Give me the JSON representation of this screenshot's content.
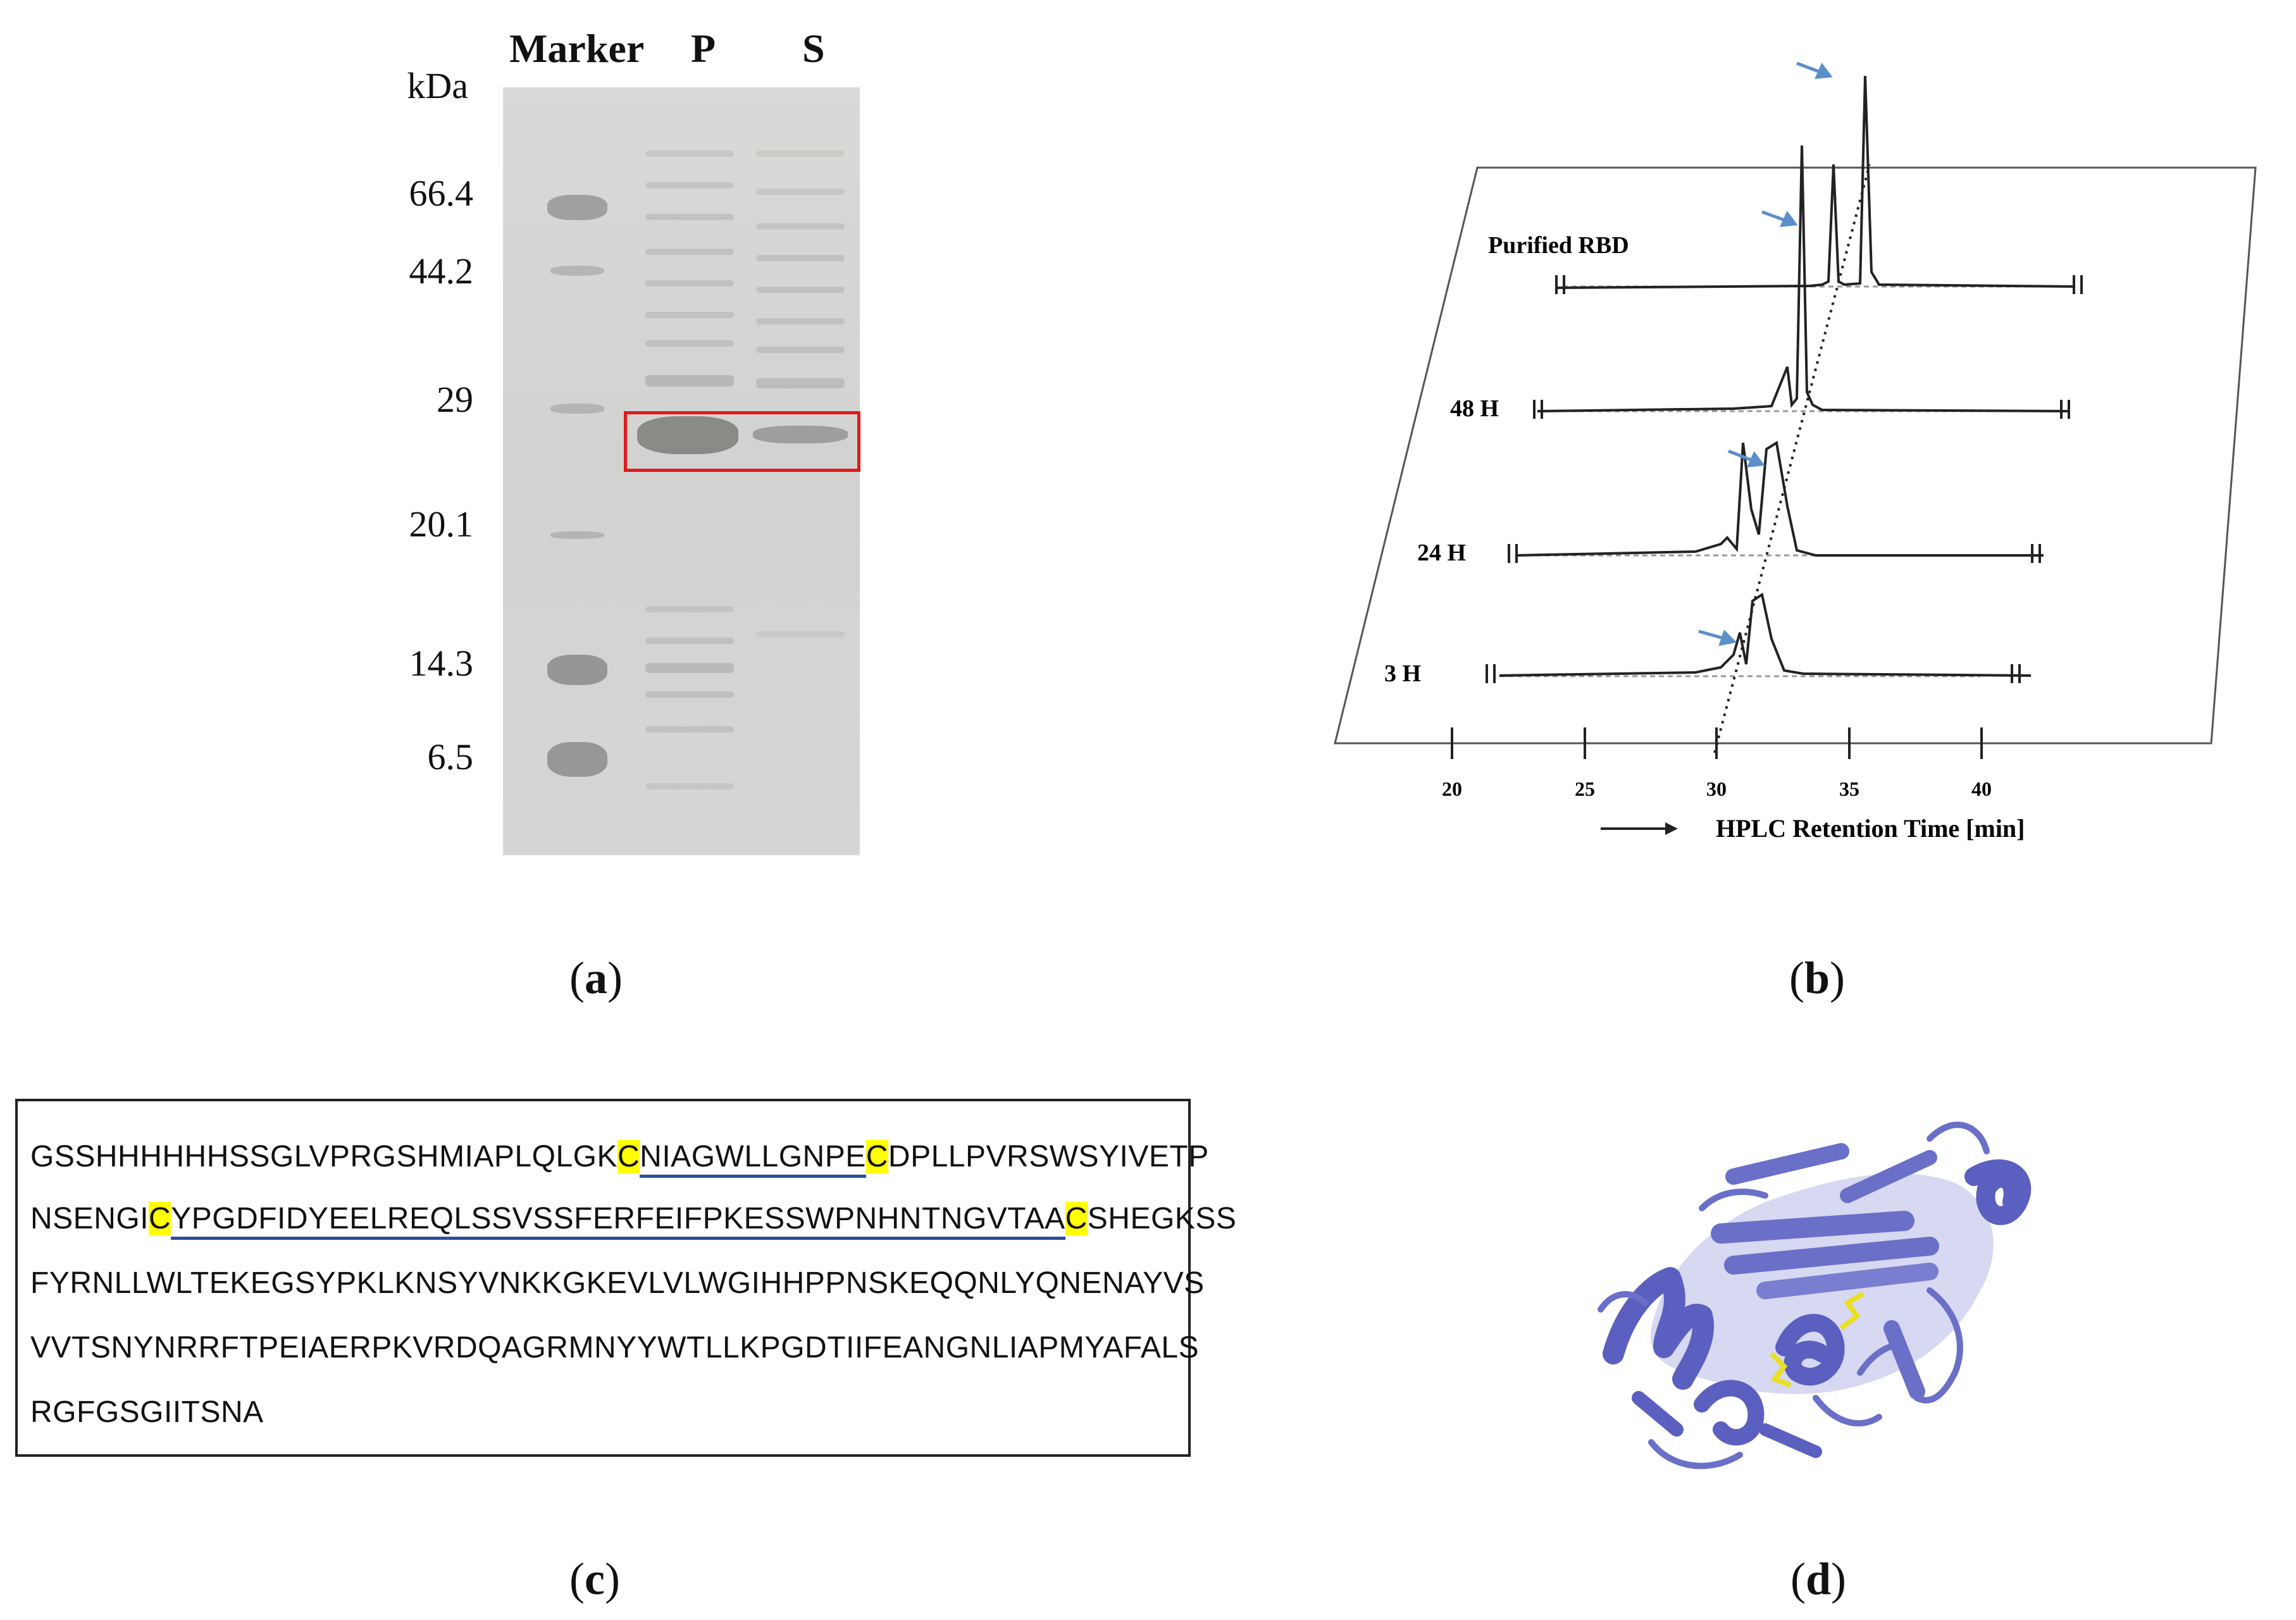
{
  "panel_a": {
    "label": "a",
    "lanes": [
      "Marker",
      "P",
      "S"
    ],
    "unit": "kDa",
    "markers": [
      "66.4",
      "44.2",
      "29",
      "20.1",
      "14.3",
      "6.5"
    ]
  },
  "panel_b": {
    "label": "b",
    "traces": [
      "Purified RBD",
      "48 H",
      "24 H",
      "3 H"
    ],
    "x_ticks": [
      "20",
      "25",
      "30",
      "35",
      "40"
    ],
    "xlabel": "HPLC Retention Time [min]"
  },
  "panel_c": {
    "label": "c",
    "lines": [
      [
        {
          "t": "GSSHHHHHHSSGLVPRGSHMIAPLQLGK",
          "s": "n"
        },
        {
          "t": "C",
          "s": "hl"
        },
        {
          "t": "NIAGWLLGNPE",
          "s": "ul"
        },
        {
          "t": "C",
          "s": "hl"
        },
        {
          "t": "DPLLPVRSWSYIVETP",
          "s": "n"
        }
      ],
      [
        {
          "t": "NSENGI",
          "s": "n"
        },
        {
          "t": "C",
          "s": "hl"
        },
        {
          "t": "YPGDFIDYEELREQLSSVSSFERFEIFPKESSWPNHNTNGVTAA",
          "s": "ul"
        },
        {
          "t": "C",
          "s": "hl"
        },
        {
          "t": "SHEGKSS",
          "s": "n"
        }
      ],
      [
        {
          "t": "FYRNLLWLTEKEGSYPKLKNSYVNKKGKEVLVLWGIHHPPNSKEQQNLYQNENAYVS",
          "s": "n"
        }
      ],
      [
        {
          "t": "VVTSNYNRRFTPEIAERPKVRDQAGRMNYYWTLLKPGDTIIFEANGNLIAPMYAFALS",
          "s": "n"
        }
      ],
      [
        {
          "t": "RGFGSGIITSNA",
          "s": "n"
        }
      ]
    ]
  },
  "panel_d": {
    "label": "d"
  },
  "colors": {
    "highlight": "#ffff00",
    "underline": "#2b4f9a",
    "arrow": "#5b8fc9",
    "protein": "#6a6fc8",
    "disulfide": "#e8e020",
    "box_red": "#e01a1a"
  }
}
